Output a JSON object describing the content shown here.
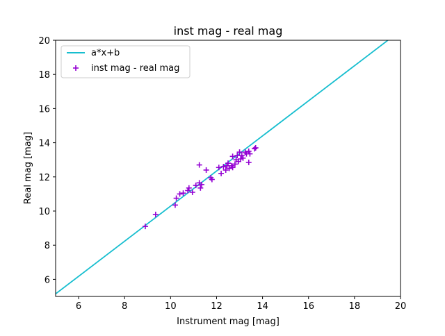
{
  "chart_data": {
    "type": "scatter",
    "title": "inst mag - real mag",
    "xlabel": "Instrument mag [mag]",
    "ylabel": "Real mag [mag]",
    "xlim": [
      5,
      20
    ],
    "ylim": [
      5,
      20
    ],
    "xticks": [
      6,
      8,
      10,
      12,
      14,
      16,
      18,
      20
    ],
    "yticks": [
      6,
      8,
      10,
      12,
      14,
      16,
      18,
      20
    ],
    "grid": false,
    "legend_position": "top-left",
    "fit_line": {
      "name": "a*x+b",
      "color": "#17becf",
      "points": [
        [
          5,
          5.15
        ],
        [
          19.45,
          20
        ]
      ]
    },
    "series": [
      {
        "name": "inst mag - real mag",
        "color": "#9400d3",
        "marker": "plus",
        "points": [
          [
            8.9,
            9.1
          ],
          [
            9.35,
            9.8
          ],
          [
            10.2,
            10.35
          ],
          [
            10.25,
            10.75
          ],
          [
            10.4,
            11.0
          ],
          [
            10.55,
            11.05
          ],
          [
            10.75,
            11.2
          ],
          [
            10.8,
            11.35
          ],
          [
            10.95,
            11.1
          ],
          [
            11.1,
            11.5
          ],
          [
            11.25,
            11.65
          ],
          [
            11.3,
            11.35
          ],
          [
            11.35,
            11.55
          ],
          [
            11.25,
            12.7
          ],
          [
            11.55,
            12.4
          ],
          [
            11.75,
            11.95
          ],
          [
            11.8,
            11.85
          ],
          [
            12.1,
            12.55
          ],
          [
            12.2,
            12.2
          ],
          [
            12.3,
            12.6
          ],
          [
            12.4,
            12.4
          ],
          [
            12.45,
            12.65
          ],
          [
            12.5,
            12.8
          ],
          [
            12.55,
            12.5
          ],
          [
            12.65,
            12.65
          ],
          [
            12.7,
            12.55
          ],
          [
            12.7,
            13.2
          ],
          [
            12.8,
            12.75
          ],
          [
            12.85,
            13.0
          ],
          [
            12.9,
            13.25
          ],
          [
            12.95,
            12.9
          ],
          [
            13.0,
            13.45
          ],
          [
            13.05,
            13.05
          ],
          [
            13.1,
            13.25
          ],
          [
            13.15,
            13.1
          ],
          [
            13.25,
            13.45
          ],
          [
            13.3,
            13.35
          ],
          [
            13.4,
            13.5
          ],
          [
            13.4,
            12.85
          ],
          [
            13.45,
            13.35
          ],
          [
            13.65,
            13.65
          ],
          [
            13.7,
            13.7
          ]
        ]
      }
    ]
  }
}
